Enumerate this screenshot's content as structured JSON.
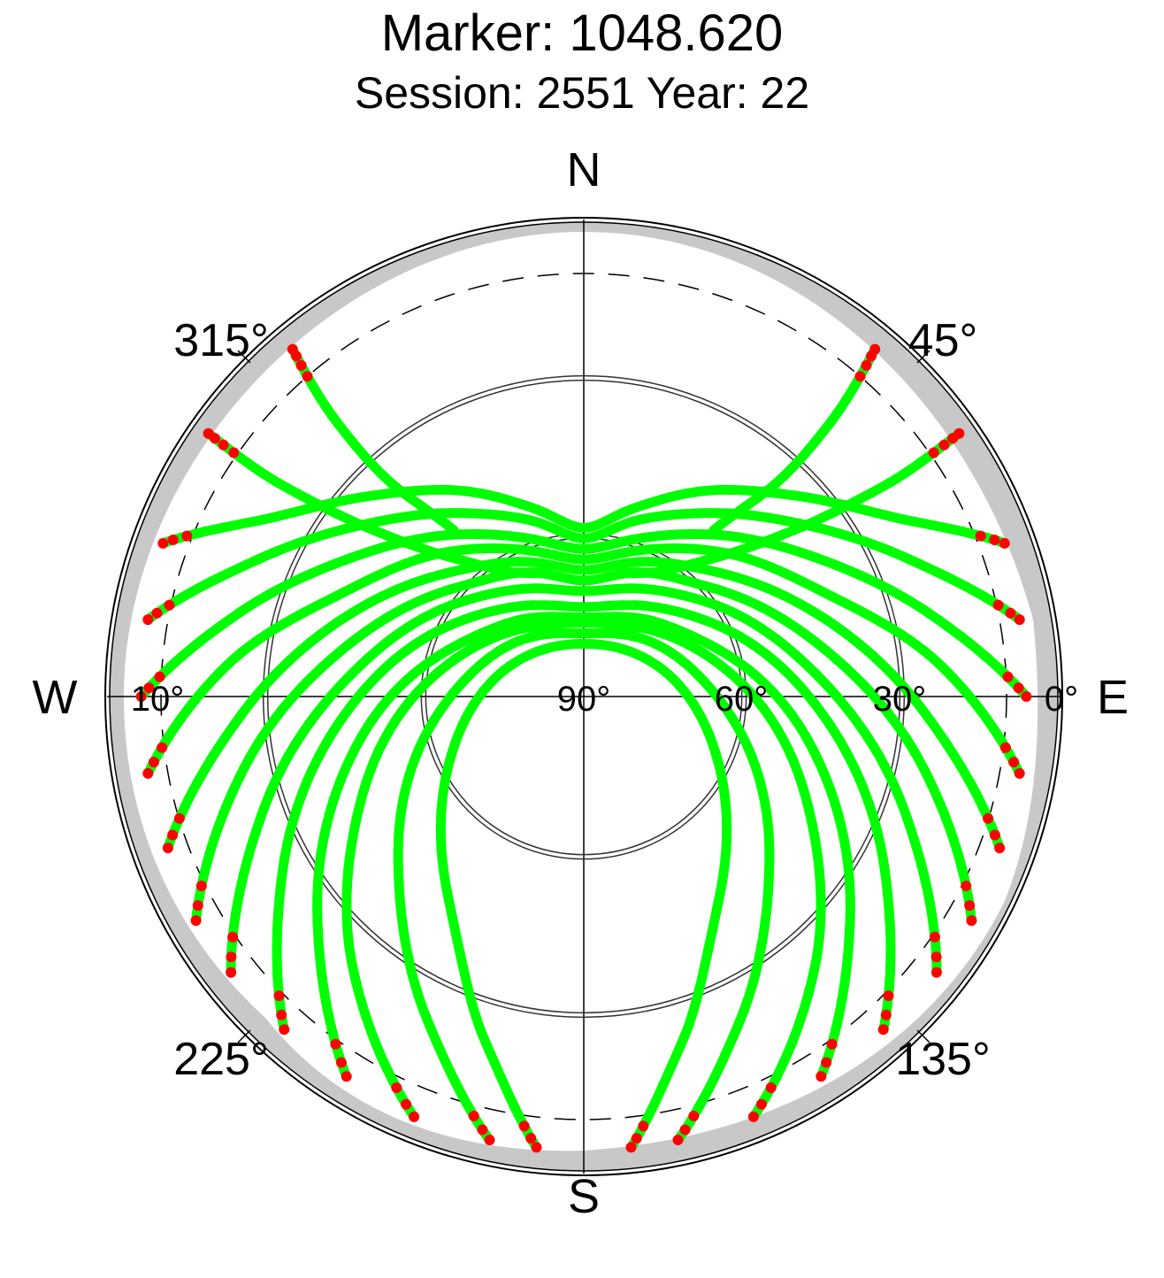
{
  "title": "Marker: 1048.620",
  "subtitle": "Session: 2551 Year: 22",
  "chart_data": {
    "type": "scatter",
    "projection": "polar skyplot (azimuth / elevation)",
    "directions": {
      "north": "N",
      "south": "S",
      "east": "E",
      "west": "W"
    },
    "azimuth_labels": [
      "45°",
      "135°",
      "225°",
      "315°"
    ],
    "elevation_labels": [
      "0°",
      "10°",
      "30°",
      "60°",
      "90°"
    ],
    "elevation_circles": [
      0,
      30,
      60
    ],
    "colors": {
      "tracks": "#00ff00",
      "low_elevation_points": "#ff0000",
      "mask": "#c8c8c8",
      "dashed_circle": "#000000"
    },
    "series": [
      {
        "color": "#00ff00",
        "points_az_el": [
          [
            290,
            5
          ],
          [
            300,
            22
          ],
          [
            314,
            35
          ],
          [
            330,
            45
          ],
          [
            345,
            53
          ],
          [
            0,
            58
          ],
          [
            15,
            53
          ],
          [
            30,
            45
          ],
          [
            46,
            35
          ],
          [
            60,
            22
          ],
          [
            70,
            5
          ]
        ]
      },
      {
        "color": "#00ff00",
        "points_az_el": [
          [
            280,
            6
          ],
          [
            292,
            22
          ],
          [
            308,
            37
          ],
          [
            326,
            48
          ],
          [
            343,
            55
          ],
          [
            0,
            60
          ],
          [
            17,
            55
          ],
          [
            34,
            48
          ],
          [
            52,
            37
          ],
          [
            68,
            22
          ],
          [
            80,
            6
          ]
        ]
      },
      {
        "color": "#00ff00",
        "points_az_el": [
          [
            270,
            6
          ],
          [
            283,
            22
          ],
          [
            300,
            38
          ],
          [
            320,
            50
          ],
          [
            340,
            58
          ],
          [
            0,
            62
          ],
          [
            20,
            58
          ],
          [
            40,
            50
          ],
          [
            60,
            38
          ],
          [
            77,
            22
          ],
          [
            90,
            6
          ]
        ]
      },
      {
        "color": "#00ff00",
        "points_az_el": [
          [
            260,
            6
          ],
          [
            275,
            22
          ],
          [
            293,
            40
          ],
          [
            316,
            52
          ],
          [
            338,
            60
          ],
          [
            0,
            64
          ],
          [
            22,
            60
          ],
          [
            44,
            52
          ],
          [
            67,
            40
          ],
          [
            85,
            22
          ],
          [
            100,
            6
          ]
        ]
      },
      {
        "color": "#00ff00",
        "points_az_el": [
          [
            250,
            6
          ],
          [
            266,
            24
          ],
          [
            288,
            42
          ],
          [
            312,
            55
          ],
          [
            336,
            62
          ],
          [
            0,
            66
          ],
          [
            24,
            62
          ],
          [
            48,
            55
          ],
          [
            72,
            42
          ],
          [
            94,
            24
          ],
          [
            110,
            6
          ]
        ]
      },
      {
        "color": "#00ff00",
        "points_az_el": [
          [
            240,
            5
          ],
          [
            258,
            24
          ],
          [
            282,
            44
          ],
          [
            310,
            58
          ],
          [
            335,
            64
          ],
          [
            0,
            68
          ],
          [
            25,
            64
          ],
          [
            50,
            58
          ],
          [
            78,
            44
          ],
          [
            102,
            24
          ],
          [
            120,
            5
          ]
        ]
      },
      {
        "color": "#00ff00",
        "points_az_el": [
          [
            232,
            5
          ],
          [
            250,
            25
          ],
          [
            276,
            46
          ],
          [
            306,
            60
          ],
          [
            333,
            67
          ],
          [
            0,
            70
          ],
          [
            27,
            67
          ],
          [
            54,
            60
          ],
          [
            84,
            46
          ],
          [
            110,
            25
          ],
          [
            128,
            5
          ]
        ]
      },
      {
        "color": "#00ff00",
        "points_az_el": [
          [
            222,
            5
          ],
          [
            240,
            24
          ],
          [
            268,
            46
          ],
          [
            300,
            62
          ],
          [
            330,
            70
          ],
          [
            0,
            73
          ],
          [
            30,
            70
          ],
          [
            60,
            62
          ],
          [
            92,
            46
          ],
          [
            120,
            24
          ],
          [
            138,
            5
          ]
        ]
      },
      {
        "color": "#00ff00",
        "points_az_el": [
          [
            212,
            5
          ],
          [
            230,
            24
          ],
          [
            258,
            46
          ],
          [
            292,
            64
          ],
          [
            326,
            72
          ],
          [
            0,
            75
          ],
          [
            34,
            72
          ],
          [
            68,
            64
          ],
          [
            102,
            46
          ],
          [
            130,
            24
          ],
          [
            148,
            5
          ]
        ]
      },
      {
        "color": "#00ff00",
        "points_az_el": [
          [
            202,
            4
          ],
          [
            220,
            22
          ],
          [
            246,
            44
          ],
          [
            282,
            63
          ],
          [
            320,
            73
          ],
          [
            0,
            76
          ],
          [
            40,
            73
          ],
          [
            78,
            63
          ],
          [
            114,
            44
          ],
          [
            140,
            22
          ],
          [
            158,
            4
          ]
        ]
      },
      {
        "color": "#00ff00",
        "points_az_el": [
          [
            192,
            4
          ],
          [
            206,
            22
          ],
          [
            230,
            44
          ],
          [
            268,
            64
          ],
          [
            312,
            74
          ],
          [
            0,
            78
          ],
          [
            48,
            74
          ],
          [
            92,
            64
          ],
          [
            130,
            44
          ],
          [
            154,
            22
          ],
          [
            168,
            4
          ]
        ]
      },
      {
        "color": "#00ff00",
        "points_az_el": [
          [
            186,
            4
          ],
          [
            196,
            22
          ],
          [
            214,
            44
          ],
          [
            250,
            64
          ],
          [
            300,
            76
          ],
          [
            0,
            80
          ],
          [
            60,
            76
          ],
          [
            110,
            64
          ],
          [
            146,
            44
          ],
          [
            164,
            22
          ],
          [
            174,
            4
          ]
        ]
      },
      {
        "color": "#00ff00",
        "points_az_el": [
          [
            305,
            3
          ],
          [
            305,
            20
          ],
          [
            308,
            38
          ],
          [
            315,
            52
          ],
          [
            328,
            62
          ],
          [
            345,
            66
          ]
        ]
      },
      {
        "color": "#00ff00",
        "points_az_el": [
          [
            15,
            66
          ],
          [
            32,
            62
          ],
          [
            45,
            52
          ],
          [
            52,
            38
          ],
          [
            55,
            20
          ],
          [
            55,
            3
          ]
        ]
      },
      {
        "color": "#00ff00",
        "points_az_el": [
          [
            320,
            4
          ],
          [
            318,
            20
          ],
          [
            318,
            36
          ],
          [
            322,
            50
          ]
        ]
      },
      {
        "color": "#00ff00",
        "points_az_el": [
          [
            38,
            50
          ],
          [
            42,
            36
          ],
          [
            42,
            20
          ],
          [
            40,
            4
          ]
        ]
      }
    ],
    "low_elevation_points": {
      "color": "#ff0000",
      "elevation_max": 10
    }
  }
}
